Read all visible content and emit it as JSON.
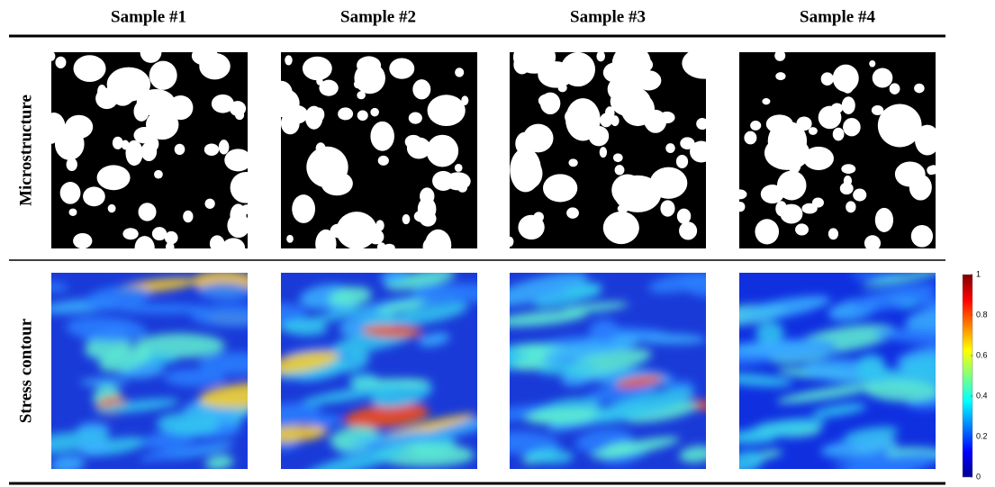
{
  "columns": [
    "Sample #1",
    "Sample #2",
    "Sample #3",
    "Sample #4"
  ],
  "rows": [
    "Microstructure",
    "Stress contour"
  ],
  "colorbar": {
    "ticks": [
      0,
      0.2,
      0.4,
      0.6,
      0.8,
      1
    ],
    "lim": [
      0,
      1
    ]
  }
}
